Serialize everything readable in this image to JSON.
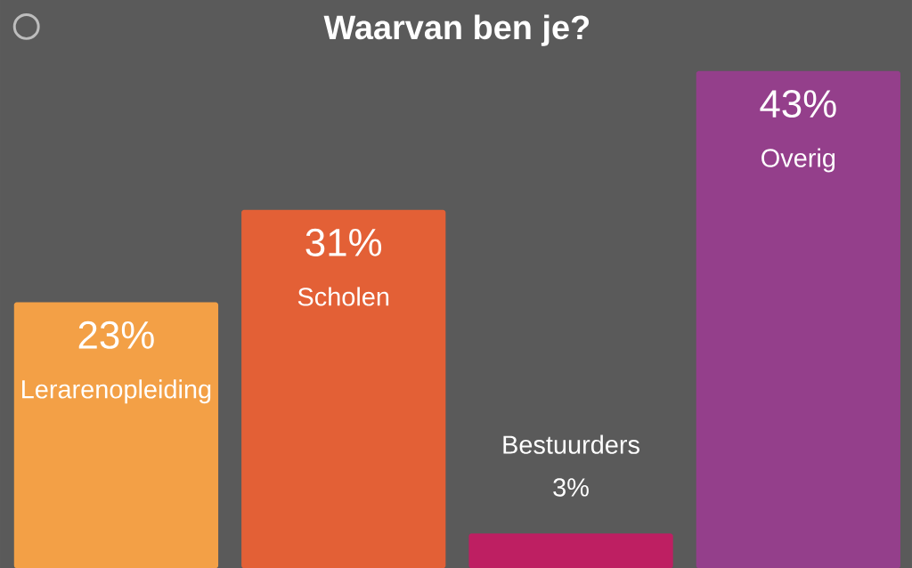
{
  "chart_data": {
    "type": "bar",
    "title": "Waarvan ben je?",
    "categories": [
      "Lerarenopleiding",
      "Scholen",
      "Bestuurders",
      "Overig"
    ],
    "values": [
      23,
      31,
      3,
      43
    ],
    "colors": [
      "#f3a046",
      "#e36036",
      "#be1f62",
      "#943f8b"
    ],
    "value_labels": [
      "23%",
      "31%",
      "3%",
      "43%"
    ]
  }
}
